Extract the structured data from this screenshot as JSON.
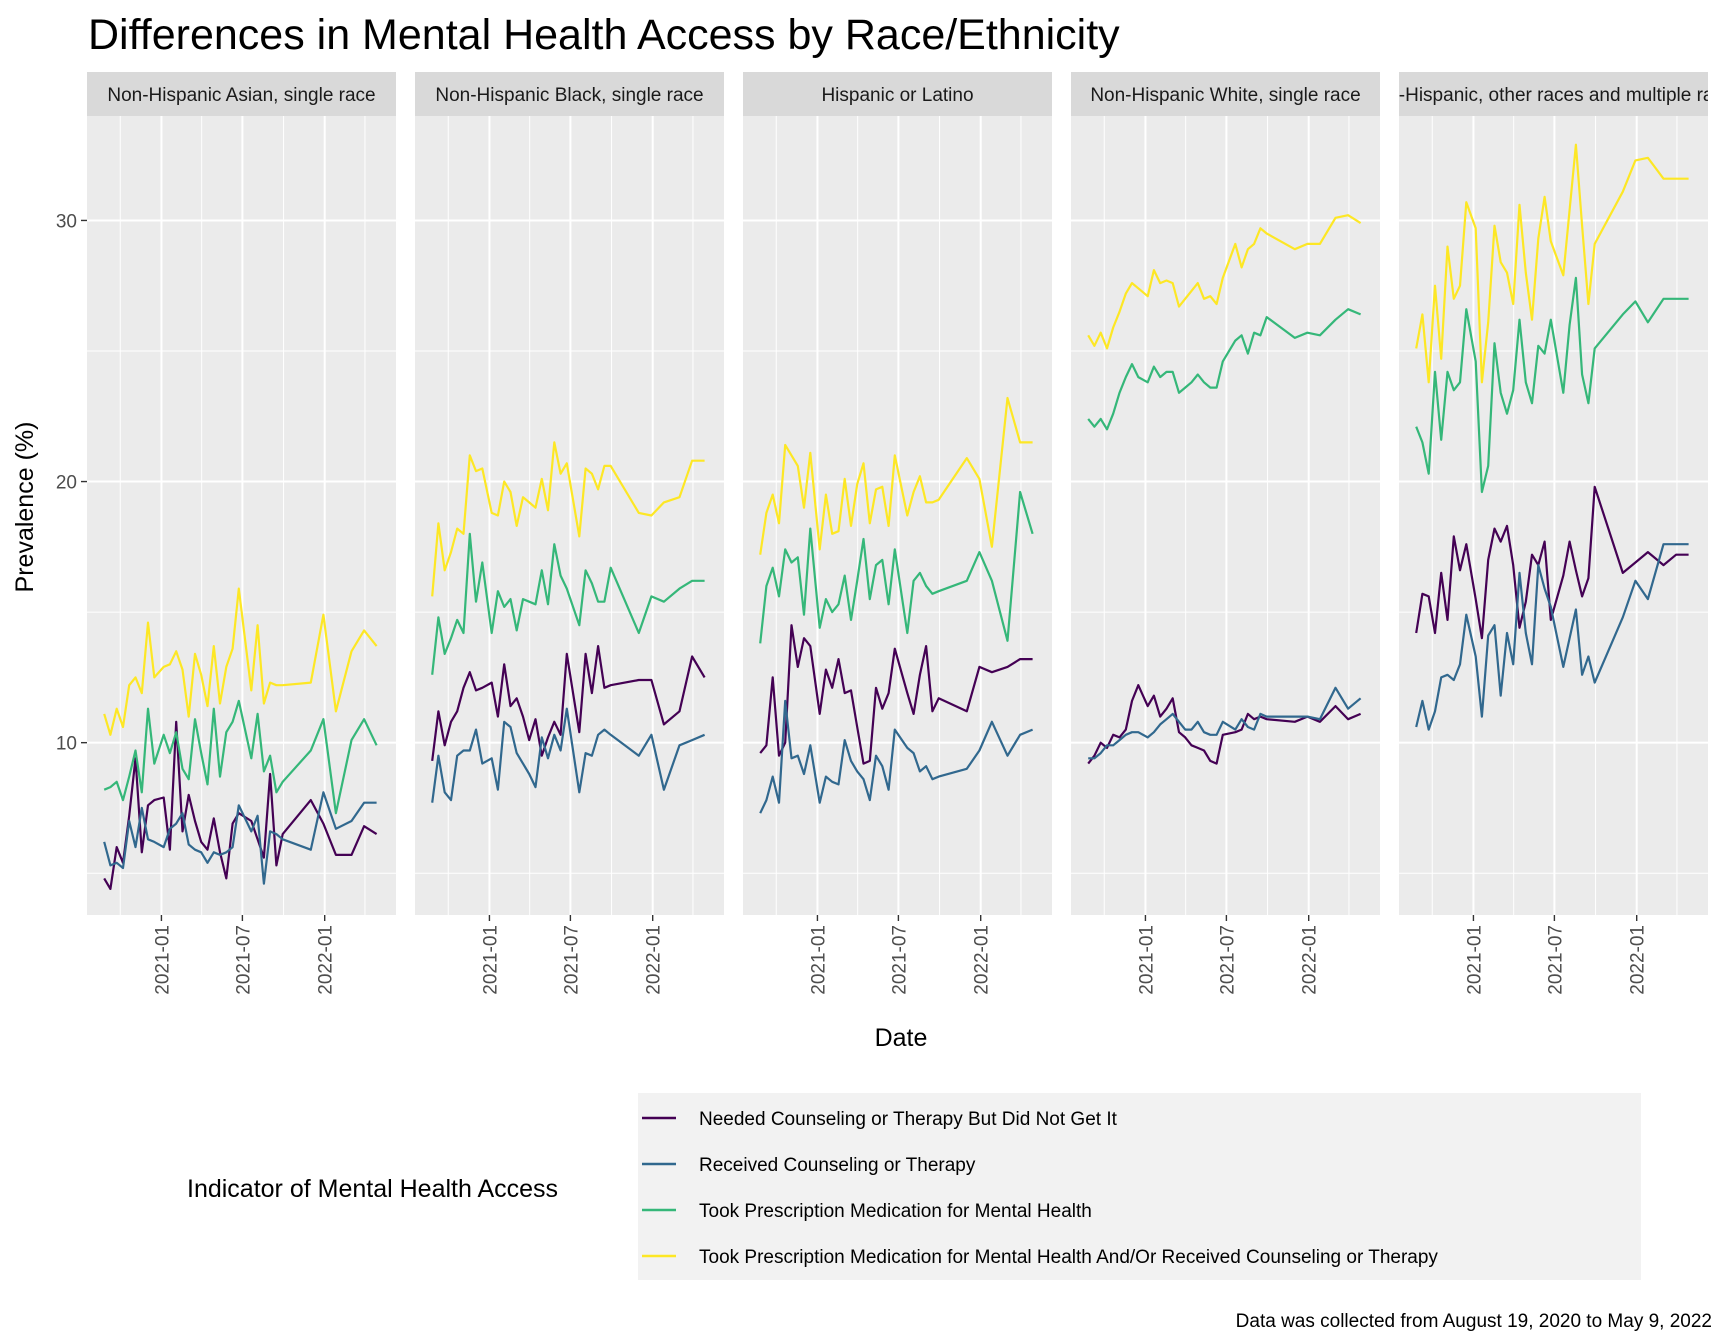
{
  "chart_data": {
    "type": "line",
    "title": "Differences in Mental Health Access by Race/Ethnicity",
    "xlabel": "Date",
    "ylabel": "Prevalence (%)",
    "caption": "Data was collected from August 19, 2020 to May 9, 2022",
    "x_range": [
      "2020-08-19",
      "2022-05-09"
    ],
    "x_ticks": [
      "2021-01",
      "2021-07",
      "2022-01"
    ],
    "y_range": [
      3.4,
      34.0
    ],
    "y_ticks": [
      10,
      20,
      30
    ],
    "grid": true,
    "legend": {
      "title": "Indicator of Mental Health Access",
      "position": "bottom",
      "entries": [
        "Needed Counseling or Therapy But Did Not Get It",
        "Received Counseling or Therapy",
        "Took Prescription Medication for Mental Health",
        "Took Prescription Medication for Mental Health And/Or Received Counseling or Therapy"
      ]
    },
    "colors": {
      "Needed Counseling or Therapy But Did Not Get It": "#440154",
      "Received Counseling or Therapy": "#31688e",
      "Took Prescription Medication for Mental Health": "#35b779",
      "Took Prescription Medication for Mental Health And/Or Received Counseling or Therapy": "#fde725"
    },
    "x": [
      "2020-08-26",
      "2020-09-09",
      "2020-09-23",
      "2020-10-07",
      "2020-10-21",
      "2020-11-04",
      "2020-11-18",
      "2020-12-02",
      "2020-12-16",
      "2021-01-06",
      "2021-01-20",
      "2021-02-03",
      "2021-02-17",
      "2021-03-03",
      "2021-03-17",
      "2021-03-31",
      "2021-04-14",
      "2021-04-28",
      "2021-05-12",
      "2021-05-26",
      "2021-06-09",
      "2021-06-23",
      "2021-07-21",
      "2021-08-04",
      "2021-08-18",
      "2021-09-01",
      "2021-09-15",
      "2021-09-29",
      "2021-12-01",
      "2021-12-29",
      "2022-01-26",
      "2022-03-02",
      "2022-03-30",
      "2022-04-27"
    ],
    "panels": [
      {
        "name": "Non-Hispanic Asian, single race",
        "series": [
          {
            "name": "Needed Counseling or Therapy But Did Not Get It",
            "values": [
              4.8,
              4.4,
              6.0,
              5.4,
              7.2,
              9.4,
              5.8,
              7.6,
              7.8,
              7.9,
              5.9,
              10.8,
              6.6,
              8.0,
              7.0,
              6.2,
              5.9,
              7.1,
              5.8,
              4.8,
              6.9,
              7.3,
              7.0,
              6.3,
              5.6,
              8.8,
              5.3,
              6.5,
              7.8,
              6.9,
              5.7,
              5.7,
              6.8,
              6.5
            ]
          },
          {
            "name": "Received Counseling or Therapy",
            "values": [
              6.2,
              5.3,
              5.4,
              5.2,
              7.0,
              6.0,
              7.5,
              6.3,
              6.2,
              6.0,
              6.7,
              6.9,
              7.3,
              6.1,
              5.9,
              5.8,
              5.4,
              5.8,
              5.7,
              5.8,
              6.0,
              7.6,
              6.6,
              7.2,
              4.6,
              6.6,
              6.5,
              6.3,
              5.9,
              8.1,
              6.7,
              7.0,
              7.7,
              7.7
            ]
          },
          {
            "name": "Took Prescription Medication for Mental Health",
            "values": [
              8.2,
              8.3,
              8.5,
              7.8,
              8.7,
              9.7,
              8.1,
              11.3,
              9.2,
              10.3,
              9.6,
              10.4,
              9.0,
              8.6,
              10.9,
              9.6,
              8.4,
              11.3,
              8.7,
              10.4,
              10.8,
              11.6,
              9.4,
              11.1,
              8.9,
              9.5,
              8.1,
              8.5,
              9.7,
              10.9,
              7.3,
              10.1,
              10.9,
              9.9
            ]
          },
          {
            "name": "Took Prescription Medication for Mental Health And/Or Received Counseling or Therapy",
            "values": [
              11.1,
              10.3,
              11.3,
              10.6,
              12.2,
              12.5,
              11.9,
              14.6,
              12.5,
              12.9,
              13.0,
              13.5,
              12.8,
              11.0,
              13.4,
              12.6,
              11.4,
              13.7,
              11.5,
              12.9,
              13.6,
              15.9,
              12.0,
              14.5,
              11.5,
              12.3,
              12.2,
              12.2,
              12.3,
              14.9,
              11.2,
              13.5,
              14.3,
              13.7
            ]
          }
        ]
      },
      {
        "name": "Non-Hispanic Black, single race",
        "series": [
          {
            "name": "Needed Counseling or Therapy But Did Not Get It",
            "values": [
              9.3,
              11.2,
              9.9,
              10.8,
              11.2,
              12.1,
              12.7,
              12.0,
              12.1,
              12.3,
              11.0,
              13.0,
              11.4,
              11.7,
              11.0,
              10.1,
              10.9,
              9.5,
              10.2,
              10.8,
              10.3,
              13.4,
              10.4,
              13.4,
              11.9,
              13.7,
              12.1,
              12.2,
              12.4,
              12.4,
              10.7,
              11.2,
              13.3,
              12.5
            ]
          },
          {
            "name": "Received Counseling or Therapy",
            "values": [
              7.7,
              9.5,
              8.1,
              7.8,
              9.5,
              9.7,
              9.7,
              10.5,
              9.2,
              9.4,
              8.2,
              10.8,
              10.6,
              9.6,
              9.2,
              8.8,
              8.3,
              10.2,
              9.4,
              10.3,
              9.7,
              11.3,
              8.1,
              9.6,
              9.5,
              10.3,
              10.5,
              10.3,
              9.5,
              10.3,
              8.2,
              9.9,
              10.1,
              10.3
            ]
          },
          {
            "name": "Took Prescription Medication for Mental Health",
            "values": [
              12.6,
              14.8,
              13.4,
              14.0,
              14.7,
              14.2,
              18.0,
              15.4,
              16.9,
              14.2,
              15.8,
              15.2,
              15.5,
              14.3,
              15.5,
              15.4,
              15.3,
              16.6,
              15.3,
              17.6,
              16.4,
              15.9,
              14.5,
              16.6,
              16.1,
              15.4,
              15.4,
              16.7,
              14.2,
              15.6,
              15.4,
              15.9,
              16.2,
              16.2
            ]
          },
          {
            "name": "Took Prescription Medication for Mental Health And/Or Received Counseling or Therapy",
            "values": [
              15.6,
              18.4,
              16.6,
              17.3,
              18.2,
              18.0,
              21.0,
              20.4,
              20.5,
              18.8,
              18.7,
              20.0,
              19.6,
              18.3,
              19.4,
              19.2,
              19.0,
              20.1,
              18.9,
              21.5,
              20.3,
              20.7,
              17.9,
              20.5,
              20.3,
              19.7,
              20.6,
              20.6,
              18.8,
              18.7,
              19.2,
              19.4,
              20.8,
              20.8
            ]
          }
        ]
      },
      {
        "name": "Hispanic or Latino",
        "series": [
          {
            "name": "Needed Counseling or Therapy But Did Not Get It",
            "values": [
              9.6,
              9.9,
              12.5,
              9.5,
              10.0,
              14.5,
              12.9,
              14.0,
              13.7,
              11.1,
              12.8,
              12.1,
              13.2,
              11.9,
              12.0,
              10.6,
              9.2,
              9.3,
              12.1,
              11.3,
              11.9,
              13.6,
              11.9,
              11.1,
              12.6,
              13.7,
              11.2,
              11.7,
              11.2,
              12.9,
              12.7,
              12.9,
              13.2,
              13.2
            ]
          },
          {
            "name": "Received Counseling or Therapy",
            "values": [
              7.3,
              7.8,
              8.7,
              7.7,
              11.6,
              9.4,
              9.5,
              8.8,
              9.9,
              7.7,
              8.7,
              8.5,
              8.4,
              10.1,
              9.3,
              8.9,
              8.6,
              7.8,
              9.5,
              9.1,
              8.2,
              10.5,
              9.8,
              9.6,
              8.9,
              9.1,
              8.6,
              8.7,
              9.0,
              9.7,
              10.8,
              9.5,
              10.3,
              10.5
            ]
          },
          {
            "name": "Took Prescription Medication for Mental Health",
            "values": [
              13.8,
              16.0,
              16.7,
              15.6,
              17.4,
              16.9,
              17.1,
              14.9,
              18.2,
              14.4,
              15.5,
              15.0,
              15.3,
              16.4,
              14.7,
              16.2,
              17.8,
              15.5,
              16.8,
              17.0,
              15.3,
              17.4,
              14.2,
              16.2,
              16.5,
              16.0,
              15.7,
              15.8,
              16.2,
              17.3,
              16.2,
              13.9,
              19.6,
              18.0
            ]
          },
          {
            "name": "Took Prescription Medication for Mental Health And/Or Received Counseling or Therapy",
            "values": [
              17.2,
              18.8,
              19.5,
              18.4,
              21.4,
              21.0,
              20.6,
              19.0,
              21.1,
              17.4,
              19.5,
              18.0,
              18.1,
              20.1,
              18.3,
              19.9,
              20.7,
              18.4,
              19.7,
              19.8,
              18.3,
              21.0,
              18.7,
              19.6,
              20.2,
              19.2,
              19.2,
              19.3,
              20.9,
              20.1,
              17.5,
              23.2,
              21.5,
              21.5
            ]
          }
        ]
      },
      {
        "name": "Non-Hispanic White, single race",
        "series": [
          {
            "name": "Needed Counseling or Therapy But Did Not Get It",
            "values": [
              9.2,
              9.5,
              10.0,
              9.8,
              10.3,
              10.2,
              10.5,
              11.6,
              12.2,
              11.4,
              11.8,
              11.0,
              11.3,
              11.7,
              10.4,
              10.2,
              9.9,
              9.8,
              9.7,
              9.3,
              9.2,
              10.3,
              10.4,
              10.5,
              11.1,
              10.9,
              11.0,
              10.9,
              10.8,
              11.0,
              10.8,
              11.4,
              10.9,
              11.1
            ]
          },
          {
            "name": "Received Counseling or Therapy",
            "values": [
              9.4,
              9.4,
              9.6,
              9.9,
              9.9,
              10.1,
              10.3,
              10.4,
              10.4,
              10.2,
              10.4,
              10.7,
              10.9,
              11.1,
              10.8,
              10.5,
              10.5,
              10.8,
              10.4,
              10.3,
              10.3,
              10.8,
              10.5,
              10.9,
              10.6,
              10.5,
              11.1,
              11.0,
              11.0,
              11.0,
              10.9,
              12.1,
              11.3,
              11.7
            ]
          },
          {
            "name": "Took Prescription Medication for Mental Health",
            "values": [
              22.4,
              22.1,
              22.4,
              22.0,
              22.6,
              23.4,
              24.0,
              24.5,
              24.0,
              23.8,
              24.4,
              24.0,
              24.2,
              24.2,
              23.4,
              23.6,
              23.8,
              24.1,
              23.8,
              23.6,
              23.6,
              24.6,
              25.4,
              25.6,
              24.9,
              25.7,
              25.6,
              26.3,
              25.5,
              25.7,
              25.6,
              26.2,
              26.6,
              26.4
            ]
          },
          {
            "name": "Took Prescription Medication for Mental Health And/Or Received Counseling or Therapy",
            "values": [
              25.6,
              25.2,
              25.7,
              25.1,
              25.9,
              26.5,
              27.2,
              27.6,
              27.4,
              27.1,
              28.1,
              27.6,
              27.7,
              27.6,
              26.7,
              27.0,
              27.3,
              27.6,
              27.0,
              27.1,
              26.8,
              27.8,
              29.1,
              28.2,
              28.9,
              29.1,
              29.7,
              29.5,
              28.9,
              29.1,
              29.1,
              30.1,
              30.2,
              29.9
            ]
          }
        ]
      },
      {
        "name": "Non-Hispanic, other races and multiple races",
        "series": [
          {
            "name": "Needed Counseling or Therapy But Did Not Get It",
            "values": [
              14.2,
              15.7,
              15.6,
              14.2,
              16.5,
              14.7,
              17.9,
              16.6,
              17.6,
              15.5,
              14.0,
              17.0,
              18.2,
              17.7,
              18.3,
              16.8,
              14.4,
              15.4,
              17.2,
              16.8,
              17.7,
              14.7,
              16.4,
              17.7,
              16.6,
              15.6,
              16.3,
              19.8,
              16.5,
              16.9,
              17.3,
              16.8,
              17.2,
              17.2
            ]
          },
          {
            "name": "Received Counseling or Therapy",
            "values": [
              10.6,
              11.6,
              10.5,
              11.2,
              12.5,
              12.6,
              12.4,
              13.0,
              14.9,
              13.3,
              11.0,
              14.1,
              14.5,
              11.8,
              14.2,
              13.0,
              16.5,
              14.2,
              13.0,
              16.8,
              15.9,
              15.2,
              12.9,
              14.0,
              15.1,
              12.6,
              13.3,
              12.3,
              14.8,
              16.2,
              15.5,
              17.6,
              17.6,
              17.6
            ]
          },
          {
            "name": "Took Prescription Medication for Mental Health",
            "values": [
              22.1,
              21.5,
              20.3,
              24.2,
              21.6,
              24.2,
              23.5,
              23.8,
              26.6,
              24.6,
              19.6,
              20.6,
              25.3,
              23.4,
              22.6,
              23.5,
              26.2,
              23.8,
              23.0,
              25.2,
              24.9,
              26.2,
              23.4,
              26.0,
              27.8,
              24.1,
              23.0,
              25.1,
              26.4,
              26.9,
              26.1,
              27.0,
              27.0,
              27.0
            ]
          },
          {
            "name": "Took Prescription Medication for Mental Health And/Or Received Counseling or Therapy",
            "values": [
              25.1,
              26.4,
              23.8,
              27.5,
              24.7,
              29.0,
              27.0,
              27.5,
              30.7,
              29.7,
              23.8,
              26.1,
              29.8,
              28.4,
              28.0,
              26.8,
              30.6,
              28.0,
              26.2,
              29.3,
              30.9,
              29.2,
              27.9,
              30.4,
              32.9,
              29.8,
              26.8,
              29.1,
              31.1,
              32.3,
              32.4,
              31.6,
              31.6,
              31.6
            ]
          }
        ]
      }
    ]
  }
}
